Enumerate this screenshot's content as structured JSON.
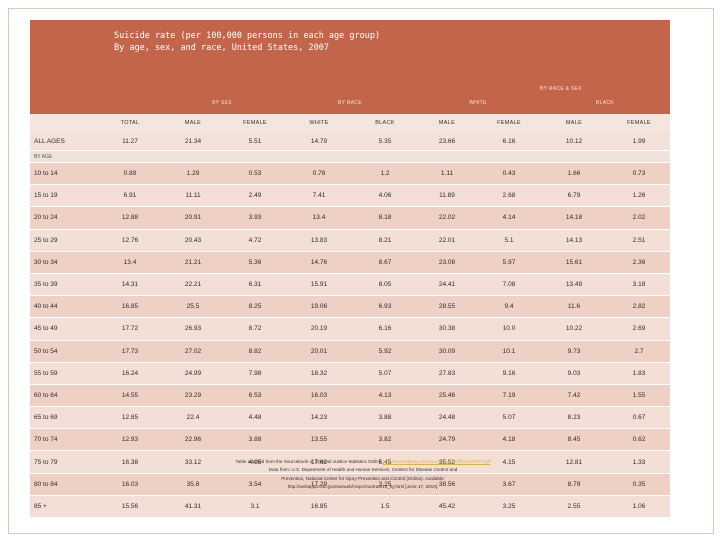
{
  "title": {
    "line1": "Suicide rate (per 100,000 persons in each age group)",
    "line2": "By age, sex, and race, United States, 2007"
  },
  "headers": {
    "by_race_sex": "BY RACE & SEX",
    "by_sex": "BY SEX",
    "by_race": "BY RACE",
    "white": "WHITE",
    "black": "BLACK",
    "columns": [
      "TOTAL",
      "MALE",
      "FEMALE",
      "WHITE",
      "BLACK",
      "MALE",
      "FEMALE",
      "MALE",
      "FEMALE"
    ]
  },
  "all_ages": {
    "label": "ALL AGES",
    "values": [
      "11.27",
      "21.34",
      "5.51",
      "14.79",
      "5.35",
      "23.66",
      "6.16",
      "10.12",
      "1.99"
    ]
  },
  "by_age_label": "BY AGE",
  "rows": [
    {
      "age": "10 to 14",
      "values": [
        "0.89",
        "1.29",
        "0.53",
        "0.78",
        "1.2",
        "1.11",
        "0.43",
        "1.66",
        "0.73"
      ]
    },
    {
      "age": "15 to 19",
      "values": [
        "6.91",
        "11.11",
        "2.49",
        "7.41",
        "4.06",
        "11.89",
        "2.68",
        "6.79",
        "1.26"
      ]
    },
    {
      "age": "20 to 24",
      "values": [
        "12.88",
        "20.91",
        "3.93",
        "13.4",
        "8.18",
        "22.02",
        "4.14",
        "14.18",
        "2.02"
      ]
    },
    {
      "age": "25 to 29",
      "values": [
        "12.76",
        "20.43",
        "4.72",
        "13.83",
        "8.21",
        "22.01",
        "5.1",
        "14.13",
        "2.51"
      ]
    },
    {
      "age": "30 to 34",
      "values": [
        "13.4",
        "21.21",
        "5.36",
        "14.76",
        "8.67",
        "23.08",
        "5.97",
        "15.61",
        "2.36"
      ]
    },
    {
      "age": "35 to 39",
      "values": [
        "14.31",
        "22.21",
        "6.31",
        "15.91",
        "8.05",
        "24.41",
        "7.08",
        "13.49",
        "3.18"
      ]
    },
    {
      "age": "40 to 44",
      "values": [
        "16.85",
        "25.5",
        "8.25",
        "19.06",
        "6.93",
        "28.55",
        "9.4",
        "11.6",
        "2.82"
      ]
    },
    {
      "age": "45 to 49",
      "values": [
        "17.72",
        "26.93",
        "8.72",
        "20.19",
        "6.16",
        "30.38",
        "10.0",
        "10.22",
        "2.69"
      ]
    },
    {
      "age": "50 to 54",
      "values": [
        "17.73",
        "27.02",
        "8.82",
        "20.01",
        "5.92",
        "30.09",
        "10.1",
        "9.73",
        "2.7"
      ]
    },
    {
      "age": "55 to 59",
      "values": [
        "16.24",
        "24.99",
        "7.98",
        "18.32",
        "5.07",
        "27.83",
        "9.16",
        "9.03",
        "1.83"
      ]
    },
    {
      "age": "60 to 64",
      "values": [
        "14.55",
        "23.29",
        "6.53",
        "16.03",
        "4.13",
        "25.46",
        "7.19",
        "7.42",
        "1.55"
      ]
    },
    {
      "age": "65 to 69",
      "values": [
        "12.85",
        "22.4",
        "4.48",
        "14.23",
        "3.88",
        "24.48",
        "5.07",
        "8.23",
        "0.67"
      ]
    },
    {
      "age": "70 to 74",
      "values": [
        "12.93",
        "22.96",
        "3.88",
        "13.55",
        "3.82",
        "24.79",
        "4.18",
        "8.45",
        "0.62"
      ]
    },
    {
      "age": "75 to 79",
      "values": [
        "16.38",
        "33.12",
        "4.05",
        "17.62",
        "5.45",
        "35.52",
        "4.15",
        "12.81",
        "1.33"
      ]
    },
    {
      "age": "80 to 84",
      "values": [
        "16.03",
        "35.8",
        "3.54",
        "17.29",
        "3.25",
        "38.56",
        "3.67",
        "8.79",
        "0.35"
      ]
    },
    {
      "age": "85 +",
      "values": [
        "15.56",
        "41.31",
        "3.1",
        "16.85",
        "1.5",
        "45.42",
        "3.25",
        "2.55",
        "1.06"
      ]
    }
  ],
  "footnote": {
    "line1_text": "Table adapted from the Sourcebook of Criminal Justice Statistics Online",
    "line1_link": "http://www.albany.edu/sourcebook/pdf/t31472007.pdf",
    "line2": "Data from: U.S. Department of Health and Human Services, Centers for Disease Control and",
    "line3": "Prevention, National Center for Injury Prevention and Control (Online). Available:",
    "line4": "http://webappa.cdc.gov/sasweb/ncipc/mortrate10_sy.html [June 17, 2010]."
  },
  "colors": {
    "header": "#c3654b",
    "row_dark": "#efd0c4",
    "row_light": "#f4dfd6",
    "background": "#f7e7db"
  }
}
